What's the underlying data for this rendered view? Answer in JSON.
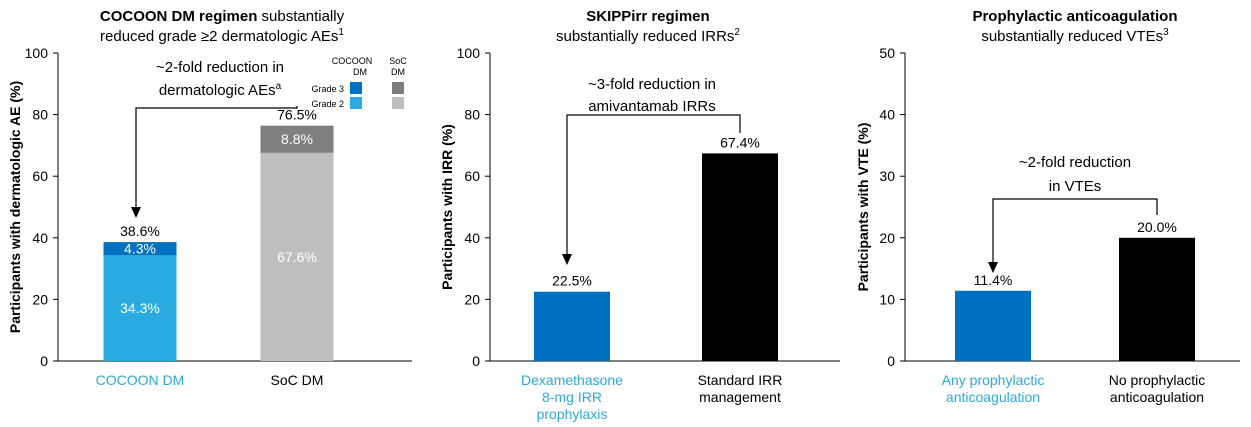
{
  "chart_data": [
    {
      "type": "bar",
      "stacked": true,
      "title_bold": "COCOON DM regimen",
      "title_rest": " substantially",
      "title_line2": "reduced grade ≥2 dermatologic AEs",
      "title_sup": "1",
      "ylabel": "Participants with dermatologic AE (%)",
      "ylim": [
        0,
        100
      ],
      "yticks": [
        0,
        20,
        40,
        60,
        80,
        100
      ],
      "categories": [
        "COCOON DM",
        "SoC DM"
      ],
      "category_colors": [
        "#2ea8e0",
        "#000000"
      ],
      "series": [
        {
          "name": "Grade 2",
          "values": [
            34.3,
            67.6
          ],
          "colors": [
            "#29abe2",
            "#bfbfbf"
          ],
          "labels": [
            "34.3%",
            "67.6%"
          ]
        },
        {
          "name": "Grade 3",
          "values": [
            4.3,
            8.8
          ],
          "colors": [
            "#0070c0",
            "#7f7f7f"
          ],
          "labels": [
            "4.3%",
            "8.8%"
          ]
        }
      ],
      "totals": [
        38.6,
        76.5
      ],
      "total_labels": [
        "38.6%",
        "76.5%"
      ],
      "legend": {
        "columns": [
          "COCOON DM",
          "SoC DM"
        ],
        "rows": [
          {
            "name": "Grade 3",
            "colors": [
              "#0070c0",
              "#7f7f7f"
            ]
          },
          {
            "name": "Grade 2",
            "colors": [
              "#29abe2",
              "#bfbfbf"
            ]
          }
        ]
      },
      "annotation": {
        "lines": [
          "~2-fold reduction in",
          "dermatologic AEs"
        ],
        "sup": "a"
      }
    },
    {
      "type": "bar",
      "title_bold": "SKIPPirr regimen",
      "title_line2": "substantially reduced IRRs",
      "title_sup": "2",
      "ylabel": "Participants with IRR (%)",
      "ylim": [
        0,
        100
      ],
      "yticks": [
        0,
        20,
        40,
        60,
        80,
        100
      ],
      "categories": [
        [
          "Dexamethasone",
          "8-mg IRR",
          "prophylaxis"
        ],
        [
          "Standard IRR",
          "management"
        ]
      ],
      "category_colors": [
        "#2ea8e0",
        "#000000"
      ],
      "values": [
        22.5,
        67.4
      ],
      "bar_colors": [
        "#0070c0",
        "#000000"
      ],
      "value_labels": [
        "22.5%",
        "67.4%"
      ],
      "annotation": {
        "lines": [
          "~3-fold reduction in",
          "amivantamab IRRs"
        ]
      }
    },
    {
      "type": "bar",
      "title_bold": "Prophylactic anticoagulation",
      "title_line2": "substantially reduced VTEs",
      "title_sup": "3",
      "ylabel": "Participants with VTE (%)",
      "ylim": [
        0,
        50
      ],
      "yticks": [
        0,
        10,
        20,
        30,
        40,
        50
      ],
      "categories": [
        [
          "Any prophylactic",
          "anticoagulation"
        ],
        [
          "No prophylactic",
          "anticoagulation"
        ]
      ],
      "category_colors": [
        "#2ea8e0",
        "#000000"
      ],
      "values": [
        11.4,
        20.0
      ],
      "bar_colors": [
        "#0070c0",
        "#000000"
      ],
      "value_labels": [
        "11.4%",
        "20.0%"
      ],
      "annotation": {
        "lines": [
          "~2-fold reduction",
          "in VTEs"
        ]
      }
    }
  ]
}
